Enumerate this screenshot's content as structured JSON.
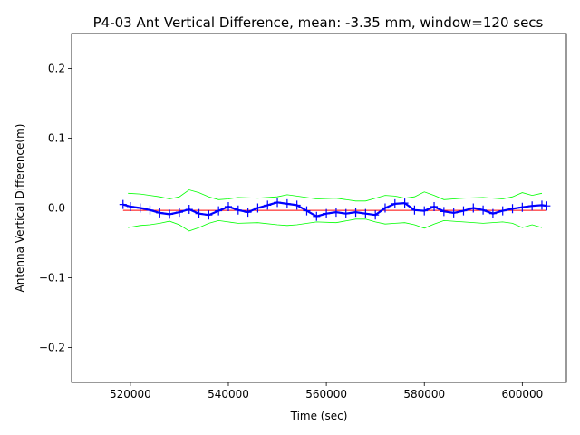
{
  "chart_data": {
    "type": "line",
    "title": "P4-03 Ant Vertical Difference, mean: -3.35 mm, window=120 secs",
    "xlabel": "Time (sec)",
    "ylabel": "Antenna Vertical Difference(m)",
    "xlim": [
      508000,
      609000
    ],
    "ylim": [
      -0.25,
      0.25
    ],
    "xticks": [
      520000,
      540000,
      560000,
      580000,
      600000
    ],
    "xtick_labels": [
      "520000",
      "540000",
      "560000",
      "580000",
      "600000"
    ],
    "yticks": [
      -0.2,
      -0.1,
      0.0,
      0.1,
      0.2
    ],
    "ytick_labels": [
      "−0.2",
      "−0.1",
      "0.0",
      "0.1",
      "0.2"
    ],
    "grid": false,
    "series": [
      {
        "role": "data",
        "color": "#0000ff",
        "marker": "+",
        "x": [
          518500,
          520000,
          522000,
          524000,
          526000,
          528000,
          530000,
          532000,
          534000,
          536000,
          538000,
          540000,
          542000,
          544000,
          546000,
          548000,
          550000,
          552000,
          554000,
          556000,
          558000,
          560000,
          562000,
          564000,
          566000,
          568000,
          570000,
          572000,
          574000,
          576000,
          578000,
          580000,
          582000,
          584000,
          586000,
          588000,
          590000,
          592000,
          594000,
          596000,
          598000,
          600000,
          602000,
          604000,
          605000
        ],
        "y": [
          0.005,
          0.002,
          0.0,
          -0.003,
          -0.007,
          -0.009,
          -0.006,
          -0.002,
          -0.008,
          -0.01,
          -0.004,
          0.002,
          -0.003,
          -0.006,
          0.0,
          0.004,
          0.008,
          0.006,
          0.004,
          -0.004,
          -0.012,
          -0.008,
          -0.006,
          -0.008,
          -0.006,
          -0.008,
          -0.01,
          0.0,
          0.006,
          0.007,
          -0.003,
          -0.004,
          0.002,
          -0.005,
          -0.007,
          -0.004,
          0.0,
          -0.003,
          -0.008,
          -0.004,
          -0.001,
          0.001,
          0.003,
          0.004,
          0.003
        ]
      },
      {
        "role": "mean",
        "color": "#ff0000",
        "x": [
          518500,
          605000
        ],
        "y": [
          -0.00335,
          -0.00335
        ]
      },
      {
        "role": "upper_bound",
        "color": "#00ff00",
        "x": [
          519500,
          522000,
          524000,
          526000,
          528000,
          530000,
          532000,
          534000,
          536000,
          538000,
          540000,
          542000,
          546000,
          550000,
          552000,
          554000,
          558000,
          562000,
          566000,
          568000,
          570000,
          572000,
          574000,
          576000,
          578000,
          580000,
          582000,
          584000,
          588000,
          592000,
          596000,
          598000,
          600000,
          602000,
          604000
        ],
        "y": [
          0.021,
          0.02,
          0.018,
          0.016,
          0.013,
          0.016,
          0.026,
          0.022,
          0.016,
          0.012,
          0.013,
          0.015,
          0.014,
          0.016,
          0.019,
          0.017,
          0.013,
          0.014,
          0.01,
          0.01,
          0.014,
          0.018,
          0.017,
          0.014,
          0.016,
          0.023,
          0.018,
          0.012,
          0.014,
          0.015,
          0.013,
          0.016,
          0.022,
          0.018,
          0.021
        ]
      },
      {
        "role": "lower_bound",
        "color": "#00ff00",
        "x": [
          519500,
          522000,
          524000,
          526000,
          528000,
          530000,
          532000,
          534000,
          536000,
          538000,
          540000,
          542000,
          546000,
          550000,
          552000,
          554000,
          558000,
          562000,
          566000,
          568000,
          570000,
          572000,
          574000,
          576000,
          578000,
          580000,
          582000,
          584000,
          588000,
          592000,
          596000,
          598000,
          600000,
          602000,
          604000
        ],
        "y": [
          -0.028,
          -0.025,
          -0.024,
          -0.022,
          -0.019,
          -0.024,
          -0.033,
          -0.028,
          -0.022,
          -0.018,
          -0.02,
          -0.022,
          -0.021,
          -0.024,
          -0.025,
          -0.024,
          -0.02,
          -0.021,
          -0.016,
          -0.016,
          -0.02,
          -0.023,
          -0.022,
          -0.021,
          -0.024,
          -0.029,
          -0.023,
          -0.018,
          -0.02,
          -0.022,
          -0.02,
          -0.022,
          -0.028,
          -0.024,
          -0.028
        ]
      }
    ]
  }
}
